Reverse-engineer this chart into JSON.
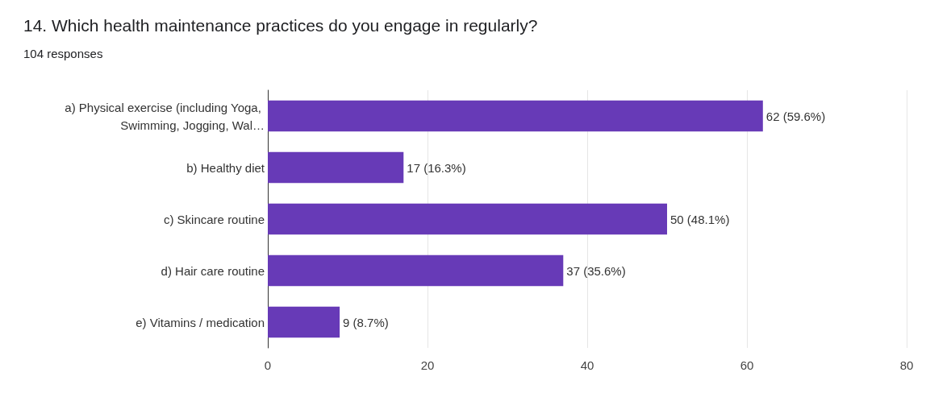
{
  "chart_data": {
    "type": "bar",
    "orientation": "horizontal",
    "title": "14. Which health maintenance practices do you engage in regularly?",
    "subtitle": "104 responses",
    "categories": [
      "a) Physical exercise (including Yoga, Swimming, Jogging, Wal…",
      "b) Healthy diet",
      "c) Skincare routine",
      "d) Hair care routine",
      "e) Vitamins / medication"
    ],
    "values": [
      62,
      17,
      50,
      37,
      9
    ],
    "value_labels": [
      "62 (59.6%)",
      "17 (16.3%)",
      "50 (48.1%)",
      "37 (35.6%)",
      "9 (8.7%)"
    ],
    "color": "#673ab7",
    "xlim": [
      0,
      80
    ],
    "xticks": [
      0,
      20,
      40,
      60,
      80
    ],
    "grid": "x"
  }
}
